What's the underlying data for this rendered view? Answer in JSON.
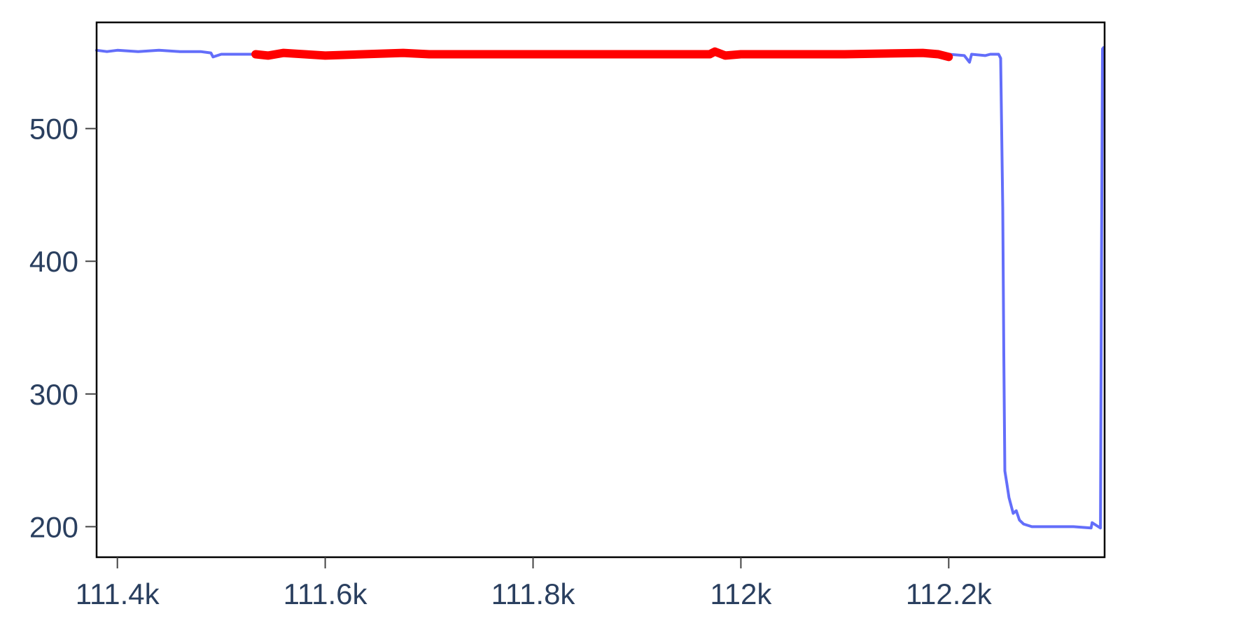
{
  "chart_data": {
    "type": "line",
    "title": "",
    "xlabel": "",
    "ylabel": "",
    "xlim": [
      111380,
      112350
    ],
    "ylim": [
      177,
      580
    ],
    "x_ticks": [
      {
        "value": 111400,
        "label": "111.4k"
      },
      {
        "value": 111600,
        "label": "111.6k"
      },
      {
        "value": 111800,
        "label": "111.8k"
      },
      {
        "value": 112000,
        "label": "112k"
      },
      {
        "value": 112200,
        "label": "112.2k"
      }
    ],
    "y_ticks": [
      {
        "value": 200,
        "label": "200"
      },
      {
        "value": 300,
        "label": "300"
      },
      {
        "value": 400,
        "label": "400"
      },
      {
        "value": 500,
        "label": "500"
      }
    ],
    "grid": false,
    "legend": false,
    "series": [
      {
        "color": "#636efa",
        "x": [
          111380,
          111390,
          111400,
          111420,
          111440,
          111460,
          111480,
          111490,
          111492,
          111500,
          111530,
          111560,
          111600,
          111700,
          111800,
          111900,
          112000,
          112100,
          112200,
          112215,
          112220,
          112222,
          112235,
          112240,
          112248,
          112250,
          112252,
          112253,
          112254,
          112256,
          112258,
          112262,
          112265,
          112268,
          112272,
          112280,
          112300,
          112320,
          112337,
          112338,
          112342,
          112346,
          112347,
          112348,
          112349
        ],
        "y": [
          559,
          558,
          559,
          558,
          559,
          558,
          558,
          557,
          554,
          556,
          556,
          556,
          556,
          556,
          556,
          556,
          556,
          556,
          556,
          555,
          550,
          556,
          555,
          556,
          556,
          553,
          440,
          330,
          242,
          232,
          222,
          210,
          212,
          205,
          202,
          200,
          200,
          200,
          199,
          203,
          201,
          199,
          393,
          560,
          561
        ]
      },
      {
        "color": "#ff0000",
        "x": [
          111533,
          111545,
          111560,
          111580,
          111600,
          111675,
          111700,
          111800,
          111900,
          111970,
          111975,
          111985,
          112000,
          112100,
          112175,
          112190,
          112200
        ],
        "y": [
          556,
          555,
          557,
          556,
          555,
          557,
          556,
          556,
          556,
          556,
          558,
          555,
          556,
          556,
          557,
          556,
          554
        ]
      }
    ]
  }
}
